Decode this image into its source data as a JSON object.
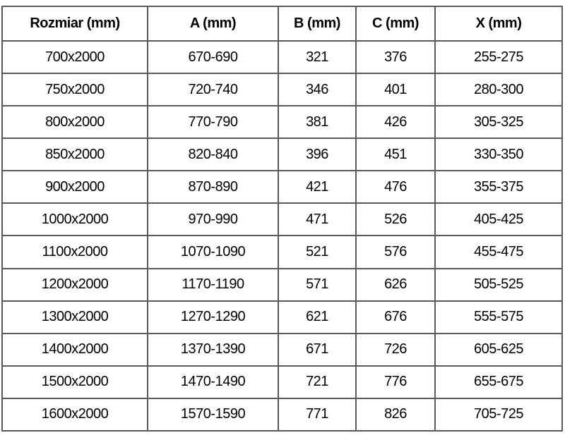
{
  "table": {
    "border_color": "#595959",
    "text_color": "#000000",
    "columns": [
      {
        "label": "Rozmiar (mm)"
      },
      {
        "label": "A (mm)"
      },
      {
        "label": "B (mm)"
      },
      {
        "label": "C (mm)"
      },
      {
        "label": "X (mm)"
      }
    ],
    "rows": [
      {
        "cells": [
          "700x2000",
          "670-690",
          "321",
          "376",
          "255-275"
        ]
      },
      {
        "cells": [
          "750x2000",
          "720-740",
          "346",
          "401",
          "280-300"
        ]
      },
      {
        "cells": [
          "800x2000",
          "770-790",
          "381",
          "426",
          "305-325"
        ]
      },
      {
        "cells": [
          "850x2000",
          "820-840",
          "396",
          "451",
          "330-350"
        ]
      },
      {
        "cells": [
          "900x2000",
          "870-890",
          "421",
          "476",
          "355-375"
        ]
      },
      {
        "cells": [
          "1000x2000",
          "970-990",
          "471",
          "526",
          "405-425"
        ]
      },
      {
        "cells": [
          "1100x2000",
          "1070-1090",
          "521",
          "576",
          "455-475"
        ]
      },
      {
        "cells": [
          "1200x2000",
          "1170-1190",
          "571",
          "626",
          "505-525"
        ]
      },
      {
        "cells": [
          "1300x2000",
          "1270-1290",
          "621",
          "676",
          "555-575"
        ]
      },
      {
        "cells": [
          "1400x2000",
          "1370-1390",
          "671",
          "726",
          "605-625"
        ]
      },
      {
        "cells": [
          "1500x2000",
          "1470-1490",
          "721",
          "776",
          "655-675"
        ]
      },
      {
        "cells": [
          "1600x2000",
          "1570-1590",
          "771",
          "826",
          "705-725"
        ]
      }
    ]
  }
}
